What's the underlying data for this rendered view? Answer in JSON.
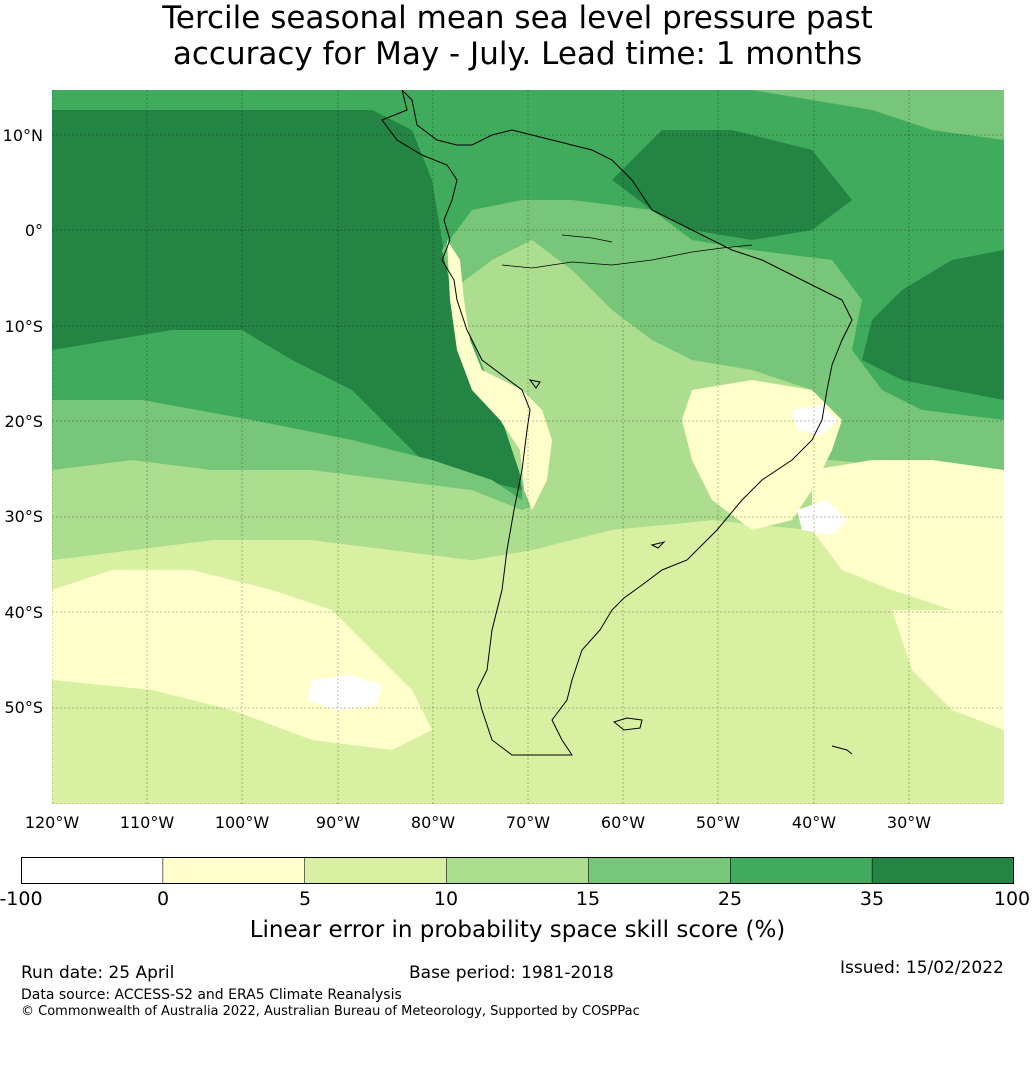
{
  "title": {
    "line1": "Tercile seasonal mean sea level pressure past",
    "line2": "accuracy for May - July. Lead time: 1 months"
  },
  "map": {
    "lat_labels": [
      "10°N",
      "0°",
      "10°S",
      "20°S",
      "30°S",
      "40°S",
      "50°S"
    ],
    "lon_labels": [
      "120°W",
      "110°W",
      "100°W",
      "90°W",
      "80°W",
      "70°W",
      "60°W",
      "50°W",
      "40°W",
      "30°W"
    ]
  },
  "colorbar": {
    "ticks": [
      "-100",
      "0",
      "5",
      "10",
      "15",
      "25",
      "35",
      "100"
    ],
    "colors": [
      "#ffffff",
      "#ffffcc",
      "#d9f0a3",
      "#addd8e",
      "#78c679",
      "#41ab5d",
      "#238443"
    ],
    "label": "Linear error in probability space skill score (%)"
  },
  "footer": {
    "run_date": "Run date: 25 April",
    "base_period": "Base period: 1981-2018",
    "issued": "Issued: 15/02/2022",
    "data_source": "Data source: ACCESS-S2 and ERA5 Climate Reanalysis",
    "copyright": "© Commonwealth of Australia 2022, Australian Bureau of Meteorology, Supported by COSPPac"
  }
}
